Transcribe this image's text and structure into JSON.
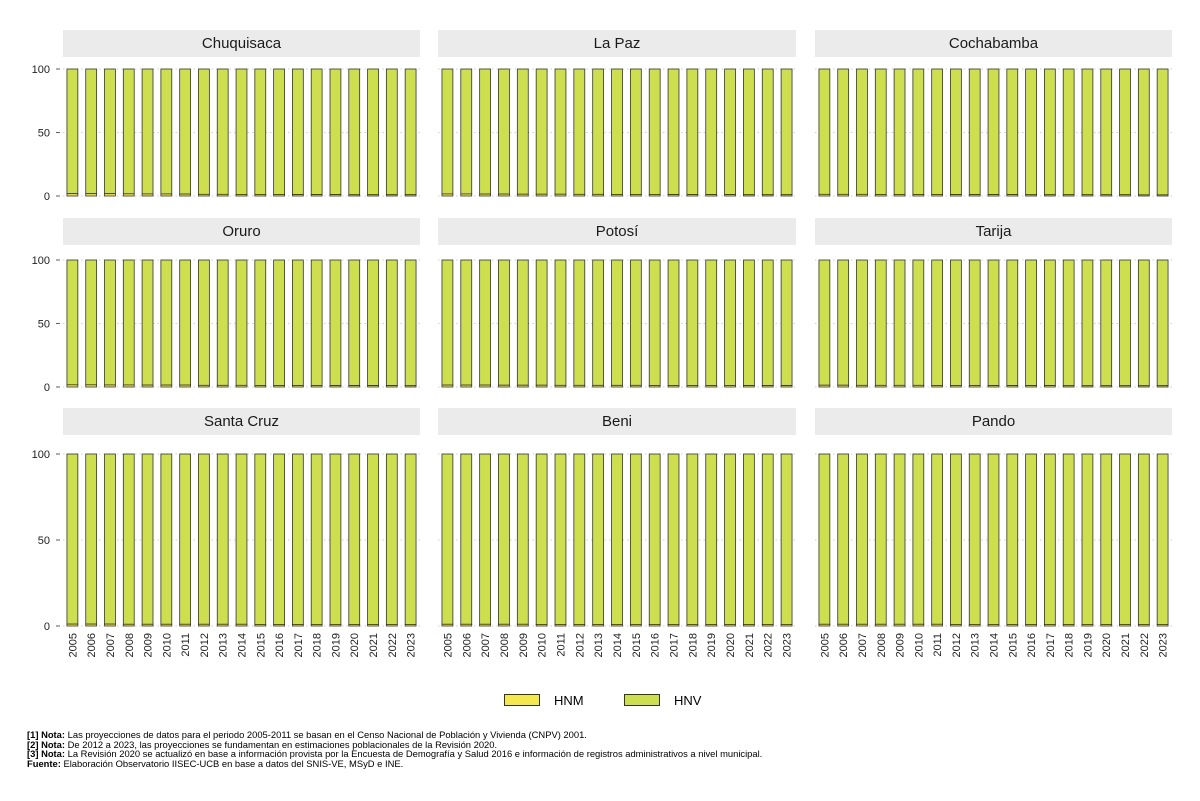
{
  "chart_data": {
    "type": "bar",
    "stacked": true,
    "layout": "facet-3x3",
    "categories": [
      "2005",
      "2006",
      "2007",
      "2008",
      "2009",
      "2010",
      "2011",
      "2012",
      "2013",
      "2014",
      "2015",
      "2016",
      "2017",
      "2018",
      "2019",
      "2020",
      "2021",
      "2022",
      "2023"
    ],
    "ylim": [
      0,
      100
    ],
    "yticks": [
      0,
      50,
      100
    ],
    "series_names": [
      "HNM",
      "HNV"
    ],
    "colors": {
      "HNM": "#f5e84f",
      "HNV": "#cddf4f",
      "strip": "#ebebeb",
      "grid": "#bfbfbf",
      "bar_border": "#333333"
    },
    "legend_position": "bottom",
    "panels": [
      {
        "name": "Chuquisaca",
        "HNM": [
          1.8,
          1.8,
          1.8,
          1.7,
          1.6,
          1.6,
          1.5,
          1.3,
          1.3,
          1.2,
          1.2,
          1.2,
          1.1,
          1.1,
          1.1,
          1.0,
          1.0,
          1.0,
          1.0
        ]
      },
      {
        "name": "La Paz",
        "HNM": [
          1.6,
          1.6,
          1.5,
          1.5,
          1.4,
          1.4,
          1.4,
          1.3,
          1.3,
          1.2,
          1.2,
          1.2,
          1.1,
          1.1,
          1.1,
          1.1,
          1.0,
          1.0,
          1.0
        ]
      },
      {
        "name": "Cochabamba",
        "HNM": [
          1.3,
          1.3,
          1.3,
          1.2,
          1.2,
          1.2,
          1.2,
          1.1,
          1.1,
          1.1,
          1.1,
          1.0,
          1.0,
          1.0,
          1.0,
          1.0,
          1.0,
          0.9,
          0.9
        ]
      },
      {
        "name": "Oruro",
        "HNM": [
          1.7,
          1.7,
          1.6,
          1.6,
          1.5,
          1.5,
          1.5,
          1.3,
          1.3,
          1.3,
          1.2,
          1.2,
          1.2,
          1.2,
          1.1,
          1.1,
          1.1,
          1.1,
          1.0
        ]
      },
      {
        "name": "Potosí",
        "HNM": [
          1.5,
          1.5,
          1.5,
          1.4,
          1.4,
          1.4,
          1.3,
          1.3,
          1.3,
          1.3,
          1.3,
          1.2,
          1.2,
          1.2,
          1.2,
          1.2,
          1.1,
          1.1,
          1.1
        ]
      },
      {
        "name": "Tarija",
        "HNM": [
          1.4,
          1.4,
          1.3,
          1.3,
          1.3,
          1.3,
          1.2,
          1.2,
          1.2,
          1.1,
          1.1,
          1.1,
          1.1,
          1.0,
          1.0,
          1.0,
          1.0,
          1.0,
          1.0
        ]
      },
      {
        "name": "Santa Cruz",
        "HNM": [
          1.1,
          1.1,
          1.1,
          1.0,
          1.0,
          1.0,
          1.0,
          1.0,
          1.0,
          1.0,
          0.9,
          0.9,
          0.9,
          0.9,
          0.9,
          0.9,
          0.9,
          0.9,
          0.9
        ]
      },
      {
        "name": "Beni",
        "HNM": [
          1.0,
          1.0,
          1.0,
          1.0,
          1.0,
          0.9,
          0.9,
          0.9,
          0.9,
          0.9,
          0.9,
          0.9,
          0.9,
          0.9,
          0.9,
          0.9,
          0.9,
          0.9,
          0.9
        ]
      },
      {
        "name": "Pando",
        "HNM": [
          1.0,
          1.0,
          1.0,
          1.0,
          1.0,
          1.0,
          1.0,
          0.9,
          0.9,
          0.9,
          0.9,
          0.9,
          0.9,
          0.9,
          0.9,
          0.9,
          0.9,
          0.9,
          0.9
        ]
      }
    ]
  },
  "notes": [
    {
      "label": "[1] Nota:",
      "text": " Las proyecciones de datos para el periodo 2005-2011 se basan en el Censo Nacional de Población y Vivienda (CNPV) 2001."
    },
    {
      "label": "[2] Nota:",
      "text": " De 2012 a 2023, las proyecciones se fundamentan en estimaciones poblacionales de la Revisión 2020."
    },
    {
      "label": "[3] Nota:",
      "text": " La Revisión 2020 se actualizó en base a información provista por la Encuesta de Demografía y Salud 2016 e información de registros administrativos a nivel municipal."
    },
    {
      "label": "Fuente:",
      "text": " Elaboración Observatorio IISEC-UCB en base a datos del SNIS-VE, MSyD e INE."
    }
  ]
}
